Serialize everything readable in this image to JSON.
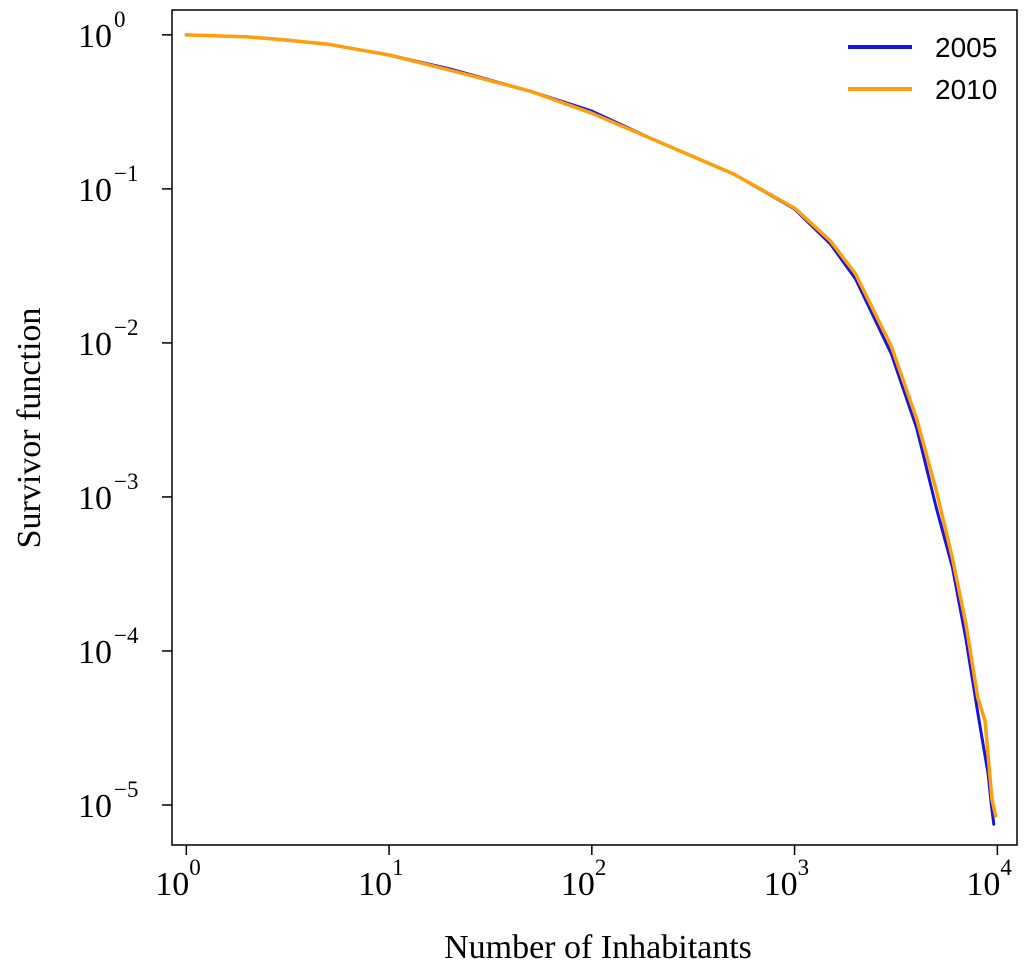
{
  "chart_data": {
    "type": "line",
    "title": "",
    "xlabel": "Number of Inhabitants",
    "ylabel": "Survivor function",
    "xscale": "log",
    "yscale": "log",
    "xlim": [
      0.85,
      12500
    ],
    "ylim": [
      5.5e-06,
      1.45
    ],
    "xticks": [
      {
        "base": "10",
        "exp": "0",
        "value": 1
      },
      {
        "base": "10",
        "exp": "1",
        "value": 10
      },
      {
        "base": "10",
        "exp": "2",
        "value": 100
      },
      {
        "base": "10",
        "exp": "3",
        "value": 1000
      },
      {
        "base": "10",
        "exp": "4",
        "value": 10000
      }
    ],
    "yticks": [
      {
        "base": "10",
        "exp": "0",
        "value": 1
      },
      {
        "base": "10",
        "exp": "−1",
        "value": 0.1
      },
      {
        "base": "10",
        "exp": "−2",
        "value": 0.01
      },
      {
        "base": "10",
        "exp": "−3",
        "value": 0.001
      },
      {
        "base": "10",
        "exp": "−4",
        "value": 0.0001
      },
      {
        "base": "10",
        "exp": "−5",
        "value": 1e-05
      }
    ],
    "grid": false,
    "legend_position": "top-right",
    "series": [
      {
        "name": "2005",
        "color": "#1515dd",
        "x": [
          1,
          2,
          3,
          5,
          10,
          20,
          50,
          100,
          200,
          500,
          1000,
          1500,
          2000,
          3000,
          4000,
          5000,
          6000,
          7000,
          8000,
          8500,
          9000,
          9300,
          9600
        ],
        "y": [
          1,
          0.97,
          0.93,
          0.87,
          0.74,
          0.6,
          0.43,
          0.32,
          0.21,
          0.125,
          0.074,
          0.044,
          0.026,
          0.0085,
          0.0028,
          0.00085,
          0.00035,
          0.00012,
          4e-05,
          2.5e-05,
          1.6e-05,
          1.05e-05,
          7.5e-06
        ]
      },
      {
        "name": "2010",
        "color": "#ff9e0a",
        "x": [
          1,
          2,
          3,
          5,
          10,
          20,
          50,
          100,
          200,
          500,
          1000,
          1500,
          2000,
          3000,
          4000,
          5000,
          6000,
          7000,
          8000,
          8700,
          9100,
          9400,
          9800
        ],
        "y": [
          1,
          0.97,
          0.93,
          0.87,
          0.74,
          0.59,
          0.43,
          0.31,
          0.21,
          0.125,
          0.075,
          0.046,
          0.028,
          0.0095,
          0.0032,
          0.0011,
          0.0004,
          0.00015,
          5e-05,
          3.5e-05,
          1.8e-05,
          1.1e-05,
          8.5e-06
        ]
      }
    ]
  }
}
